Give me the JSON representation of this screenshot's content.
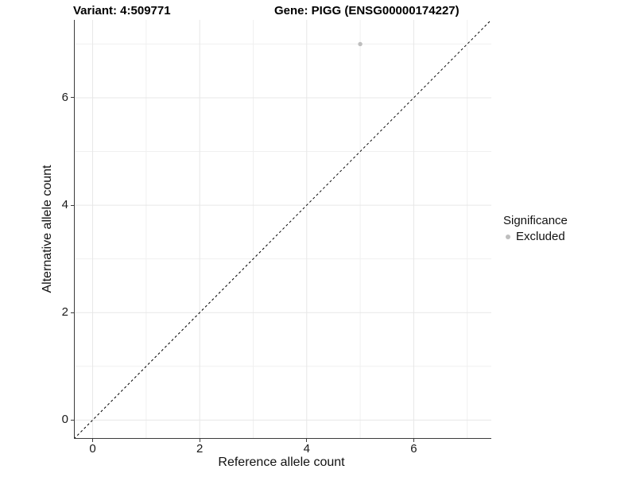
{
  "chart_data": {
    "type": "scatter",
    "titles": [
      "Variant: 4:509771",
      "Gene: PIGG (ENSG00000174227)"
    ],
    "xlabel": "Reference allele count",
    "ylabel": "Alternative allele count",
    "xlim": [
      -0.35,
      7.45
    ],
    "ylim": [
      -0.35,
      7.45
    ],
    "x_major_ticks": [
      0,
      2,
      4,
      6
    ],
    "y_major_ticks": [
      0,
      2,
      4,
      6
    ],
    "x_minor_gridlines": [
      1,
      3,
      5,
      7
    ],
    "y_minor_gridlines": [
      1,
      3,
      5,
      7
    ],
    "grid": "on",
    "legend": {
      "title": "Significance",
      "position": "right",
      "entries": [
        {
          "label": "Excluded",
          "color": "#bebebe"
        }
      ]
    },
    "identity_line": {
      "style": "dashed",
      "color": "#000000",
      "from": -0.35,
      "to": 7.45
    },
    "series": [
      {
        "name": "Excluded",
        "color": "#bebebe",
        "points": [
          [
            5,
            7
          ]
        ]
      }
    ]
  },
  "style": {
    "grid_major_color": "#e7e7e7",
    "grid_minor_color": "#f0f0f0",
    "axis_line_color": "#3c3c3c",
    "tick_mark_color": "#3c3c3c",
    "point_radius": 2.7
  }
}
